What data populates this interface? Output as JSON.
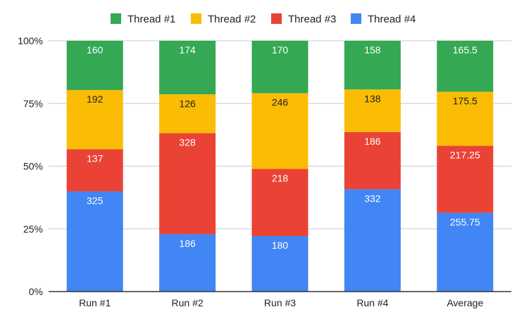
{
  "chart_data": {
    "type": "bar",
    "stacked": true,
    "normalized": true,
    "categories": [
      "Run #1",
      "Run #2",
      "Run #3",
      "Run #4",
      "Average"
    ],
    "series": [
      {
        "name": "Thread #4",
        "color": "#4285f4",
        "values": [
          325,
          186,
          180,
          332,
          255.75
        ]
      },
      {
        "name": "Thread #3",
        "color": "#ea4335",
        "values": [
          137,
          328,
          218,
          186,
          217.25
        ]
      },
      {
        "name": "Thread #2",
        "color": "#fbbc04",
        "values": [
          192,
          126,
          246,
          138,
          175.5
        ]
      },
      {
        "name": "Thread #1",
        "color": "#34a853",
        "values": [
          160,
          174,
          170,
          158,
          165.5
        ]
      }
    ],
    "legend_order": [
      "Thread #1",
      "Thread #2",
      "Thread #3",
      "Thread #4"
    ],
    "legend_position": "top",
    "yticks": [
      "0%",
      "25%",
      "50%",
      "75%",
      "100%"
    ],
    "ylim": [
      0,
      100
    ],
    "grid": true
  }
}
